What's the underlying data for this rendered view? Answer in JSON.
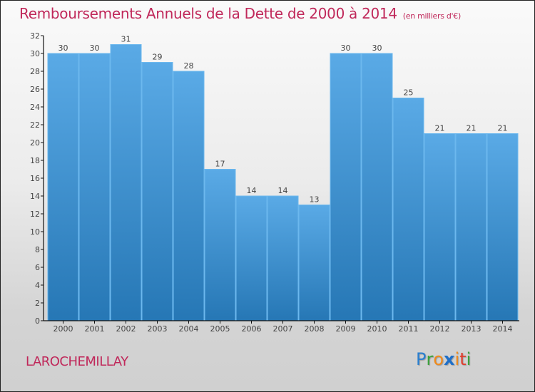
{
  "chart_data": {
    "type": "bar",
    "title": "Remboursements Annuels de la Dette de 2000 à 2014",
    "subtitle": "(en milliers d'€)",
    "xlabel": "",
    "ylabel": "",
    "categories": [
      "2000",
      "2001",
      "2002",
      "2003",
      "2004",
      "2005",
      "2006",
      "2007",
      "2008",
      "2009",
      "2010",
      "2011",
      "2012",
      "2013",
      "2014"
    ],
    "values": [
      30,
      30,
      31,
      29,
      28,
      17,
      14,
      14,
      13,
      30,
      30,
      25,
      21,
      21,
      21
    ],
    "ylim": [
      0,
      32
    ],
    "yticks": [
      0,
      2,
      4,
      6,
      8,
      10,
      12,
      14,
      16,
      18,
      20,
      22,
      24,
      26,
      28,
      30,
      32
    ],
    "grid": false,
    "legend": "none",
    "bar_color_top": "#5aaae6",
    "bar_color_bottom": "#2677b5"
  },
  "commune": "LAROCHEMILLAY",
  "logo": {
    "letters": [
      {
        "ch": "P",
        "color": "#2a7fd0"
      },
      {
        "ch": "r",
        "color": "#3aa23a"
      },
      {
        "ch": "o",
        "color": "#f08a1a"
      },
      {
        "ch": "x",
        "color": "#1f6fc8"
      },
      {
        "ch": "i",
        "color": "#f08a1a"
      },
      {
        "ch": "t",
        "color": "#e23b2a"
      },
      {
        "ch": "i",
        "color": "#3aa23a"
      }
    ]
  }
}
